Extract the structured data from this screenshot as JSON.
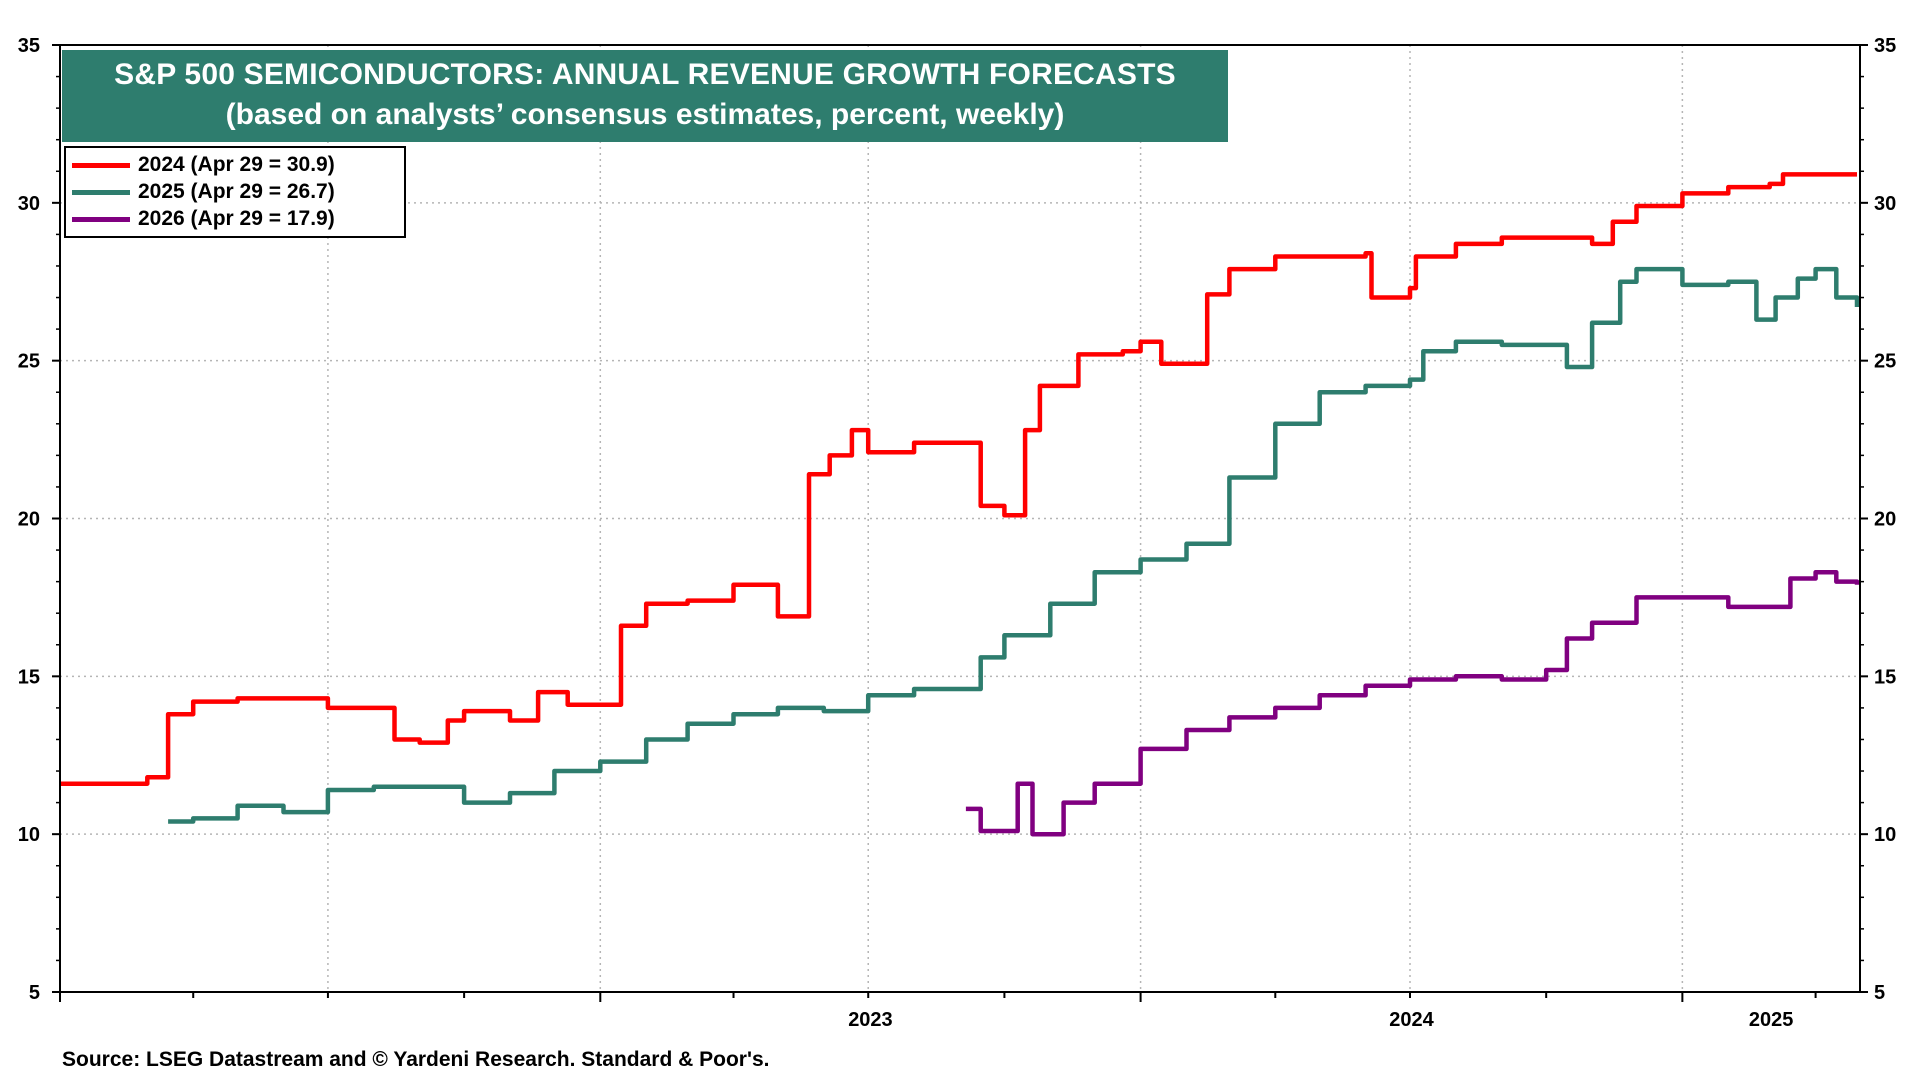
{
  "source": "Source: LSEG Datastream and © Yardeni Research. Standard & Poor's.",
  "chart_data": {
    "type": "line",
    "title": "S&P 500 SEMICONDUCTORS: ANNUAL REVENUE GROWTH FORECASTS",
    "subtitle": "(based on analysts’ consensus estimates, percent, weekly)",
    "title_bg": "#2e7d6e",
    "ylim": [
      5,
      35
    ],
    "yticks": [
      "5",
      "10",
      "15",
      "20",
      "25",
      "30",
      "35"
    ],
    "x_ticks": [
      "2023",
      "2024",
      "2025"
    ],
    "xlim": [
      "2022-01-01",
      "2025-05-01"
    ],
    "grid": true,
    "legend_position": "top-left",
    "series": [
      {
        "name": "2024 (Apr 29 = 30.9)",
        "color": "#ff0000",
        "points": [
          [
            "2022-01-01",
            11.6
          ],
          [
            "2022-02-01",
            11.6
          ],
          [
            "2022-03-01",
            11.8
          ],
          [
            "2022-03-15",
            13.8
          ],
          [
            "2022-04-01",
            14.2
          ],
          [
            "2022-05-01",
            14.3
          ],
          [
            "2022-06-01",
            14.3
          ],
          [
            "2022-07-01",
            14.0
          ],
          [
            "2022-08-01",
            14.0
          ],
          [
            "2022-08-15",
            13.0
          ],
          [
            "2022-09-01",
            12.9
          ],
          [
            "2022-09-20",
            13.6
          ],
          [
            "2022-10-01",
            13.9
          ],
          [
            "2022-11-01",
            13.6
          ],
          [
            "2022-11-20",
            14.5
          ],
          [
            "2022-12-10",
            14.1
          ],
          [
            "2023-01-01",
            14.1
          ],
          [
            "2023-01-15",
            16.6
          ],
          [
            "2023-02-01",
            17.3
          ],
          [
            "2023-03-01",
            17.4
          ],
          [
            "2023-04-01",
            17.9
          ],
          [
            "2023-05-01",
            16.9
          ],
          [
            "2023-05-20",
            16.9
          ],
          [
            "2023-05-22",
            21.4
          ],
          [
            "2023-06-05",
            22.0
          ],
          [
            "2023-06-20",
            22.8
          ],
          [
            "2023-07-01",
            22.1
          ],
          [
            "2023-08-01",
            22.4
          ],
          [
            "2023-09-01",
            22.4
          ],
          [
            "2023-09-15",
            20.4
          ],
          [
            "2023-10-01",
            20.1
          ],
          [
            "2023-10-15",
            22.8
          ],
          [
            "2023-10-25",
            24.2
          ],
          [
            "2023-11-20",
            25.2
          ],
          [
            "2023-12-20",
            25.3
          ],
          [
            "2024-01-01",
            25.6
          ],
          [
            "2024-01-15",
            24.9
          ],
          [
            "2024-02-10",
            24.9
          ],
          [
            "2024-02-15",
            27.1
          ],
          [
            "2024-03-01",
            27.9
          ],
          [
            "2024-04-01",
            28.3
          ],
          [
            "2024-05-01",
            28.3
          ],
          [
            "2024-06-01",
            28.4
          ],
          [
            "2024-06-05",
            27.0
          ],
          [
            "2024-07-01",
            27.3
          ],
          [
            "2024-07-05",
            28.3
          ],
          [
            "2024-08-01",
            28.7
          ],
          [
            "2024-09-01",
            28.9
          ],
          [
            "2024-10-01",
            28.9
          ],
          [
            "2024-11-01",
            28.7
          ],
          [
            "2024-11-15",
            29.4
          ],
          [
            "2024-12-01",
            29.9
          ],
          [
            "2025-01-01",
            30.3
          ],
          [
            "2025-02-01",
            30.5
          ],
          [
            "2025-03-01",
            30.6
          ],
          [
            "2025-03-10",
            30.9
          ],
          [
            "2025-04-29",
            30.9
          ]
        ]
      },
      {
        "name": "2025 (Apr 29 = 26.7)",
        "color": "#2e7d6e",
        "points": [
          [
            "2022-03-15",
            10.4
          ],
          [
            "2022-04-01",
            10.5
          ],
          [
            "2022-05-01",
            10.9
          ],
          [
            "2022-06-01",
            10.7
          ],
          [
            "2022-07-01",
            11.4
          ],
          [
            "2022-08-01",
            11.5
          ],
          [
            "2022-09-01",
            11.5
          ],
          [
            "2022-10-01",
            11.0
          ],
          [
            "2022-11-01",
            11.3
          ],
          [
            "2022-12-01",
            12.0
          ],
          [
            "2023-01-01",
            12.3
          ],
          [
            "2023-02-01",
            13.0
          ],
          [
            "2023-03-01",
            13.5
          ],
          [
            "2023-04-01",
            13.8
          ],
          [
            "2023-05-01",
            14.0
          ],
          [
            "2023-06-01",
            13.9
          ],
          [
            "2023-07-01",
            14.4
          ],
          [
            "2023-08-01",
            14.6
          ],
          [
            "2023-09-01",
            14.6
          ],
          [
            "2023-09-15",
            15.6
          ],
          [
            "2023-10-01",
            16.3
          ],
          [
            "2023-11-01",
            17.3
          ],
          [
            "2023-12-01",
            18.3
          ],
          [
            "2024-01-01",
            18.7
          ],
          [
            "2024-02-01",
            19.2
          ],
          [
            "2024-03-01",
            21.3
          ],
          [
            "2024-04-01",
            23.0
          ],
          [
            "2024-05-01",
            24.0
          ],
          [
            "2024-06-01",
            24.2
          ],
          [
            "2024-07-01",
            24.4
          ],
          [
            "2024-07-10",
            25.3
          ],
          [
            "2024-08-01",
            25.6
          ],
          [
            "2024-09-01",
            25.5
          ],
          [
            "2024-10-01",
            25.5
          ],
          [
            "2024-10-15",
            24.8
          ],
          [
            "2024-11-01",
            26.2
          ],
          [
            "2024-11-20",
            27.5
          ],
          [
            "2024-12-01",
            27.9
          ],
          [
            "2025-01-01",
            27.4
          ],
          [
            "2025-02-01",
            27.5
          ],
          [
            "2025-02-20",
            26.3
          ],
          [
            "2025-03-05",
            27.0
          ],
          [
            "2025-03-20",
            27.6
          ],
          [
            "2025-04-01",
            27.9
          ],
          [
            "2025-04-15",
            27.0
          ],
          [
            "2025-04-29",
            26.7
          ]
        ]
      },
      {
        "name": "2026 (Apr 29 = 17.9)",
        "color": "#800080",
        "points": [
          [
            "2023-09-05",
            10.8
          ],
          [
            "2023-09-15",
            10.1
          ],
          [
            "2023-10-10",
            11.6
          ],
          [
            "2023-10-20",
            10.0
          ],
          [
            "2023-11-10",
            11.0
          ],
          [
            "2023-12-01",
            11.6
          ],
          [
            "2024-01-01",
            12.7
          ],
          [
            "2024-02-01",
            13.3
          ],
          [
            "2024-03-01",
            13.7
          ],
          [
            "2024-04-01",
            14.0
          ],
          [
            "2024-05-01",
            14.4
          ],
          [
            "2024-06-01",
            14.7
          ],
          [
            "2024-07-01",
            14.9
          ],
          [
            "2024-08-01",
            15.0
          ],
          [
            "2024-09-01",
            14.9
          ],
          [
            "2024-10-01",
            15.2
          ],
          [
            "2024-10-15",
            16.2
          ],
          [
            "2024-11-01",
            16.7
          ],
          [
            "2024-12-01",
            17.5
          ],
          [
            "2025-01-01",
            17.5
          ],
          [
            "2025-02-01",
            17.2
          ],
          [
            "2025-03-01",
            17.2
          ],
          [
            "2025-03-15",
            18.1
          ],
          [
            "2025-04-01",
            18.3
          ],
          [
            "2025-04-15",
            18.0
          ],
          [
            "2025-04-29",
            17.9
          ]
        ]
      }
    ]
  }
}
